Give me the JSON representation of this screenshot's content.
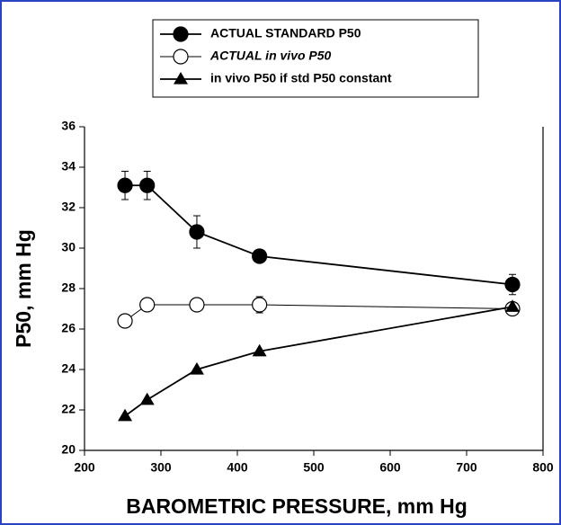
{
  "chart_data": {
    "type": "scatter-line",
    "x_label": "BAROMETRIC  PRESSURE,  mm Hg",
    "y_label": "P50,  mm Hg",
    "x": [
      253,
      282,
      347,
      429,
      760
    ],
    "series": [
      {
        "name": "ACTUAL  STANDARD P50",
        "color": "#000000",
        "marker": "circle",
        "values": [
          33.1,
          33.1,
          30.8,
          29.6,
          28.2
        ],
        "errors": [
          0.7,
          0.7,
          0.8,
          0.3,
          0.5
        ]
      },
      {
        "name": "ACTUAL in vivo P50",
        "color": "#000000",
        "marker": "open-circle",
        "values": [
          26.4,
          27.2,
          27.2,
          27.2,
          27.0
        ],
        "errors": [
          0.2,
          0.2,
          0.2,
          0.4,
          0.3
        ]
      },
      {
        "name": "in vivo P50 if std P50 constant",
        "color": "#000000",
        "marker": "triangle",
        "values": [
          21.7,
          22.5,
          24.0,
          24.9,
          27.1
        ]
      }
    ],
    "xlim": [
      200,
      800
    ],
    "xticks": [
      200,
      300,
      400,
      500,
      600,
      700,
      800
    ],
    "ylim": [
      20,
      36
    ],
    "yticks": [
      20,
      22,
      24,
      26,
      28,
      30,
      32,
      34,
      36
    ],
    "legend": "top",
    "grid": false
  }
}
